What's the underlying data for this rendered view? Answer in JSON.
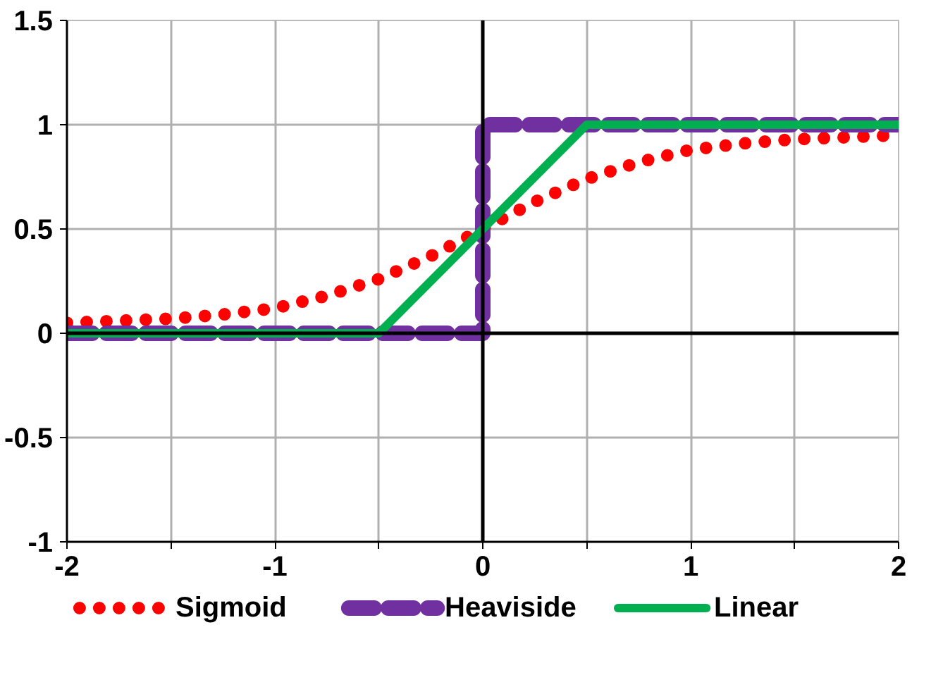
{
  "chart_data": {
    "type": "line",
    "xlim": [
      -2,
      2
    ],
    "ylim": [
      -1,
      1.5
    ],
    "xticks": [
      -2,
      {
        "value": -1.5,
        "label": null
      },
      -1,
      {
        "value": -0.5,
        "label": null
      },
      0,
      {
        "value": 0.5,
        "label": null
      },
      1,
      {
        "value": 1.5,
        "label": null
      },
      2
    ],
    "yticks": [
      -1,
      -0.5,
      0,
      0.5,
      1,
      1.5
    ],
    "grid": true,
    "legend": "bottom",
    "marker": "none",
    "series": [
      {
        "name": "Sigmoid",
        "color": "#ff0000",
        "line_style": "dotted",
        "x": [
          -2,
          -1.75,
          -1.5,
          -1.25,
          -1,
          -0.75,
          -0.5,
          -0.25,
          0,
          0.25,
          0.5,
          0.75,
          1,
          1.25,
          1.5,
          1.75,
          2
        ],
        "values": [
          0.05,
          0.06,
          0.07,
          0.09,
          0.12,
          0.18,
          0.26,
          0.37,
          0.5,
          0.63,
          0.74,
          0.82,
          0.88,
          0.91,
          0.93,
          0.94,
          0.95
        ]
      },
      {
        "name": "Heaviside",
        "color": "#7030a0",
        "line_style": "dashed",
        "x": [
          -2,
          0,
          0,
          2
        ],
        "values": [
          0,
          0,
          1,
          1
        ]
      },
      {
        "name": "Linear",
        "color": "#00b050",
        "line_style": "solid",
        "x": [
          -2,
          -0.5,
          0.5,
          2
        ],
        "values": [
          0,
          0,
          1,
          1
        ]
      }
    ]
  }
}
